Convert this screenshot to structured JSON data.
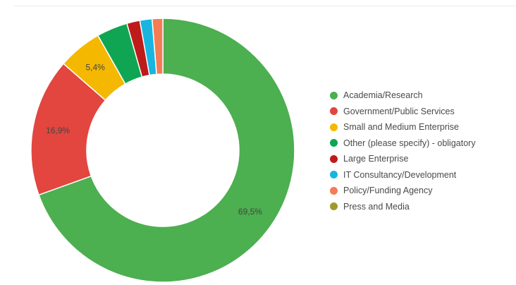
{
  "chart_data": {
    "type": "pie",
    "title": "",
    "donut": true,
    "legend_position": "right",
    "slices": [
      {
        "label": "Academia/Research",
        "value": 69.5,
        "color": "#4caf50",
        "data_label": "69,5%"
      },
      {
        "label": "Government/Public Services",
        "value": 16.9,
        "color": "#e2463f",
        "data_label": "16,9%"
      },
      {
        "label": "Small and Medium Enterprise",
        "value": 5.4,
        "color": "#f5b800",
        "data_label": "5,4%"
      },
      {
        "label": "Other (please specify) - obligatory",
        "value": 3.8,
        "color": "#10a552",
        "data_label": ""
      },
      {
        "label": "Large Enterprise",
        "value": 1.6,
        "color": "#be1b1b",
        "data_label": ""
      },
      {
        "label": "IT Consultancy/Development",
        "value": 1.5,
        "color": "#19b5e0",
        "data_label": ""
      },
      {
        "label": "Policy/Funding Agency",
        "value": 1.3,
        "color": "#f47c55",
        "data_label": ""
      },
      {
        "label": "Press and Media",
        "value": 0,
        "color": "#9e9b2b",
        "data_label": ""
      }
    ]
  }
}
